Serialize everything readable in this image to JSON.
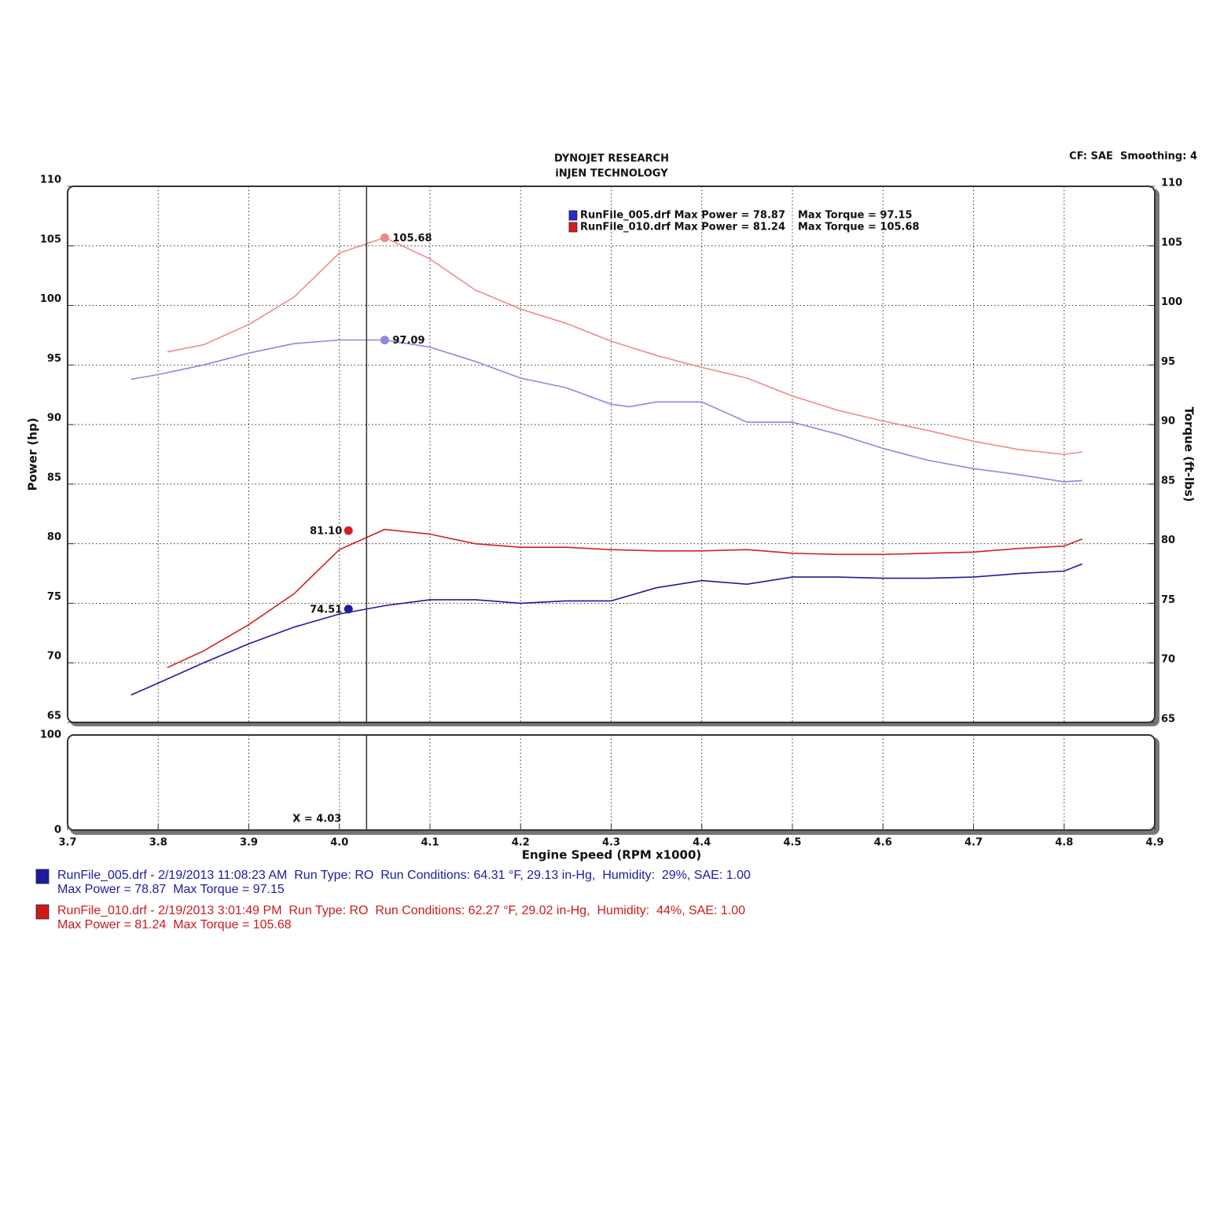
{
  "chart_data": {
    "type": "line",
    "title": "DYNOJET RESEARCH",
    "subtitle": "iNJEN TECHNOLOGY",
    "corner_note": "CF: SAE  Smoothing: 4",
    "x_label": "Engine Speed (RPM x1000)",
    "y_label": "Power (hp)",
    "y2_label": "Torque (ft-lbs)",
    "xlim": [
      3.7,
      4.9
    ],
    "xticks": [
      3.7,
      3.8,
      3.9,
      {
        "value": 4.0,
        "label": "4.0"
      },
      4.1,
      4.2,
      4.3,
      4.4,
      4.5,
      4.6,
      4.7,
      4.8,
      4.9
    ],
    "ylim": [
      65,
      110
    ],
    "yticks": [
      65,
      70,
      75,
      80,
      85,
      90,
      95,
      100,
      105,
      110
    ],
    "y2lim": [
      65,
      110
    ],
    "y2ticks": [
      65,
      70,
      75,
      80,
      85,
      90,
      95,
      100,
      105,
      110
    ],
    "grid": true,
    "series": [
      {
        "color": "#1c1ca0",
        "x": [
          3.77,
          3.8,
          3.85,
          3.9,
          3.95,
          4.0,
          4.05,
          4.1,
          4.15,
          4.2,
          4.25,
          4.3,
          4.35,
          4.4,
          4.45,
          4.5,
          4.55,
          4.6,
          4.65,
          4.7,
          4.75,
          4.8,
          4.82
        ],
        "values": [
          67.3,
          68.3,
          70.0,
          71.6,
          73.0,
          74.1,
          74.8,
          75.3,
          75.3,
          75.0,
          75.2,
          75.2,
          76.3,
          76.9,
          76.6,
          77.2,
          77.2,
          77.1,
          77.1,
          77.2,
          77.5,
          77.7,
          78.3
        ]
      },
      {
        "color": "#d42020",
        "x": [
          3.81,
          3.85,
          3.9,
          3.95,
          4.0,
          4.05,
          4.1,
          4.15,
          4.2,
          4.25,
          4.3,
          4.35,
          4.4,
          4.45,
          4.5,
          4.55,
          4.6,
          4.65,
          4.7,
          4.75,
          4.8,
          4.82
        ],
        "values": [
          69.6,
          71.0,
          73.2,
          75.8,
          79.5,
          81.2,
          80.8,
          80.0,
          79.7,
          79.7,
          79.5,
          79.4,
          79.4,
          79.5,
          79.2,
          79.1,
          79.1,
          79.2,
          79.3,
          79.6,
          79.8,
          80.4
        ]
      },
      {
        "color": "#8a8ae0",
        "axis": "y2",
        "x": [
          3.77,
          3.8,
          3.85,
          3.9,
          3.95,
          4.0,
          4.05,
          4.1,
          4.15,
          4.2,
          4.25,
          4.3,
          4.32,
          4.35,
          4.4,
          4.45,
          4.5,
          4.55,
          4.6,
          4.65,
          4.7,
          4.75,
          4.8,
          4.82
        ],
        "values": [
          93.8,
          94.2,
          95.0,
          96.0,
          96.8,
          97.1,
          97.1,
          96.5,
          95.3,
          93.9,
          93.1,
          91.7,
          91.5,
          91.9,
          91.9,
          90.2,
          90.2,
          89.2,
          88.0,
          87.0,
          86.3,
          85.8,
          85.2,
          85.3
        ]
      },
      {
        "color": "#ef8a8a",
        "axis": "y2",
        "x": [
          3.81,
          3.85,
          3.9,
          3.95,
          4.0,
          4.05,
          4.1,
          4.15,
          4.2,
          4.25,
          4.3,
          4.35,
          4.4,
          4.45,
          4.5,
          4.55,
          4.6,
          4.65,
          4.7,
          4.75,
          4.8,
          4.82
        ],
        "values": [
          96.1,
          96.7,
          98.4,
          100.7,
          104.4,
          105.7,
          103.9,
          101.3,
          99.7,
          98.5,
          97.0,
          95.8,
          94.8,
          93.9,
          92.4,
          91.2,
          90.3,
          89.5,
          88.6,
          87.9,
          87.5,
          87.7
        ]
      }
    ],
    "annotations": [
      {
        "x": 4.05,
        "value": 105.68,
        "axis": "y2",
        "color": "#ef8a8a"
      },
      {
        "x": 4.05,
        "value": 97.09,
        "axis": "y2",
        "color": "#8a8ae0"
      },
      {
        "x": 4.01,
        "value": 81.1,
        "label": "81.10",
        "color": "#d42020"
      },
      {
        "x": 4.01,
        "value": 74.51,
        "color": "#1c1ca0"
      }
    ],
    "cursor": {
      "value": 4.03,
      "label": "X = 4.03"
    },
    "lower_ylim": [
      0,
      100
    ],
    "lower_yticks": [
      0,
      100
    ],
    "legend": [
      {
        "color": "#2a2ac8",
        "text": "RunFile_005.drf Max Power = 78.87",
        "torque": "Max Torque = 97.15"
      },
      {
        "color": "#d42020",
        "text": "RunFile_010.drf Max Power = 81.24",
        "torque": "Max Torque = 105.68"
      }
    ],
    "run_info": [
      {
        "color": "#1c1ca0",
        "lines": [
          "RunFile_005.drf - 2/19/2013 11:08:23 AM  Run Type: RO  Run Conditions: 64.31 °F, 29.13 in-Hg,  Humidity:  29%, SAE: 1.00",
          "Max Power = 78.87  Max Torque = 97.15"
        ]
      },
      {
        "color": "#cc1a1a",
        "lines": [
          "RunFile_010.drf - 2/19/2013 3:01:49 PM  Run Type: RO  Run Conditions: 62.27 °F, 29.02 in-Hg,  Humidity:  44%, SAE: 1.00",
          "Max Power = 81.24  Max Torque = 105.68"
        ]
      }
    ]
  }
}
